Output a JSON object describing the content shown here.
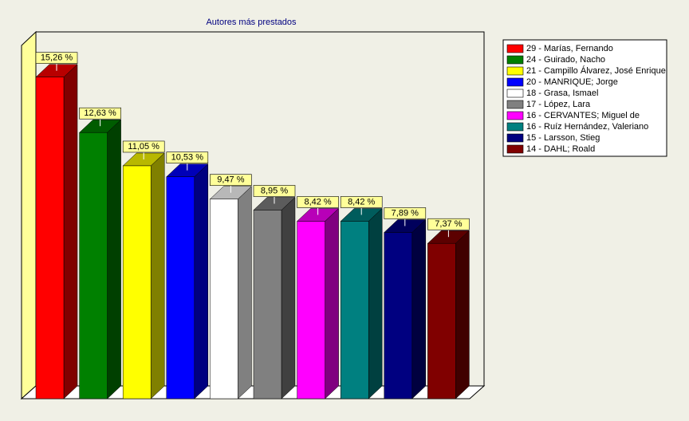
{
  "chart_data": {
    "type": "bar3d",
    "title": "Autores más prestados",
    "categories": [
      "29  - Marías, Fernando",
      "24  - Guirado, Nacho",
      "21  - Campillo Álvarez, José Enrique",
      "20  - MANRIQUE; Jorge",
      "18  - Grasa, Ismael",
      "17  - López, Lara",
      "16  - CERVANTES; Miguel de",
      "16  - Ruíz Hernández, Valeriano",
      "15  - Larsson, Stieg",
      "14  - DAHL; Roald"
    ],
    "values": [
      15.26,
      12.63,
      11.05,
      10.53,
      9.47,
      8.95,
      8.42,
      8.42,
      7.89,
      7.37
    ],
    "value_labels": [
      "15,26 %",
      "12,63 %",
      "11,05 %",
      "10,53 %",
      "9,47 %",
      "8,95 %",
      "8,42 %",
      "8,42 %",
      "7,89 %",
      "7,37 %"
    ],
    "colors": [
      "#ff0000",
      "#008000",
      "#ffff00",
      "#0000ff",
      "#ffffff",
      "#808080",
      "#ff00ff",
      "#008080",
      "#000080",
      "#800000"
    ],
    "ylim": [
      0,
      16.8
    ],
    "legend": "right"
  }
}
